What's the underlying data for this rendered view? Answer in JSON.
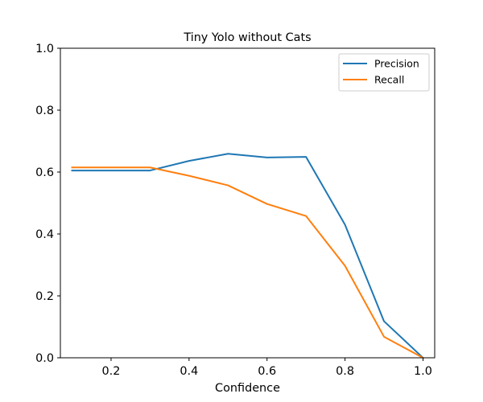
{
  "chart_data": {
    "type": "line",
    "title": "Tiny Yolo without Cats",
    "xlabel": "Confidence",
    "ylabel": "",
    "xlim": [
      0.07,
      1.03
    ],
    "ylim": [
      0.0,
      1.0
    ],
    "xticks": [
      "0.2",
      "0.4",
      "0.6",
      "0.8",
      "1.0"
    ],
    "yticks": [
      "0.0",
      "0.2",
      "0.4",
      "0.6",
      "0.8",
      "1.0"
    ],
    "grid": false,
    "legend_position": "top-right",
    "x": [
      0.1,
      0.2,
      0.3,
      0.4,
      0.5,
      0.6,
      0.7,
      0.8,
      0.9,
      1.0
    ],
    "series": [
      {
        "name": "Precision",
        "color": "#1f77b4",
        "values": [
          0.605,
          0.605,
          0.605,
          0.636,
          0.659,
          0.647,
          0.649,
          0.43,
          0.118,
          0.0
        ]
      },
      {
        "name": "Recall",
        "color": "#ff7f0e",
        "values": [
          0.615,
          0.615,
          0.615,
          0.588,
          0.557,
          0.497,
          0.458,
          0.297,
          0.068,
          0.0
        ]
      }
    ]
  }
}
